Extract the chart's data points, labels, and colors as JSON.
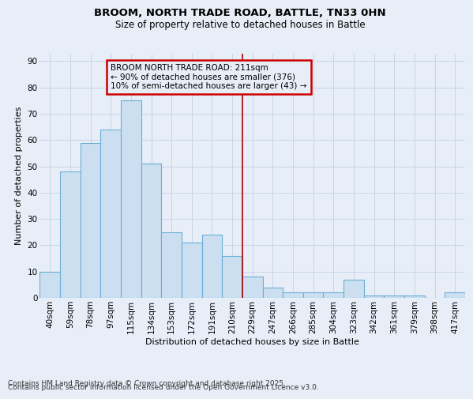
{
  "title": "BROOM, NORTH TRADE ROAD, BATTLE, TN33 0HN",
  "subtitle": "Size of property relative to detached houses in Battle",
  "xlabel": "Distribution of detached houses by size in Battle",
  "ylabel": "Number of detached properties",
  "categories": [
    "40sqm",
    "59sqm",
    "78sqm",
    "97sqm",
    "115sqm",
    "134sqm",
    "153sqm",
    "172sqm",
    "191sqm",
    "210sqm",
    "229sqm",
    "247sqm",
    "266sqm",
    "285sqm",
    "304sqm",
    "323sqm",
    "342sqm",
    "361sqm",
    "379sqm",
    "398sqm",
    "417sqm"
  ],
  "values": [
    10,
    48,
    59,
    64,
    75,
    51,
    25,
    21,
    24,
    16,
    8,
    4,
    2,
    2,
    2,
    7,
    1,
    1,
    1,
    0,
    2
  ],
  "bar_color": "#ccdff0",
  "bar_edge_color": "#6aaed6",
  "bar_linewidth": 0.8,
  "vline_x_index": 9,
  "vline_color": "#aa0000",
  "vline_linewidth": 1.2,
  "annotation_line1": "BROOM NORTH TRADE ROAD: 211sqm",
  "annotation_line2": "← 90% of detached houses are smaller (376)",
  "annotation_line3": "10% of semi-detached houses are larger (43) →",
  "annotation_box_color": "#cc0000",
  "ylim": [
    0,
    93
  ],
  "yticks": [
    0,
    10,
    20,
    30,
    40,
    50,
    60,
    70,
    80,
    90
  ],
  "grid_color": "#c8d4e8",
  "bg_color": "#e8eef8",
  "footer_line1": "Contains HM Land Registry data © Crown copyright and database right 2025.",
  "footer_line2": "Contains public sector information licensed under the Open Government Licence v3.0.",
  "title_fontsize": 9.5,
  "subtitle_fontsize": 8.5,
  "ylabel_fontsize": 8,
  "xlabel_fontsize": 8,
  "tick_fontsize": 7.5,
  "annotation_fontsize": 7.5,
  "footer_fontsize": 6.5
}
